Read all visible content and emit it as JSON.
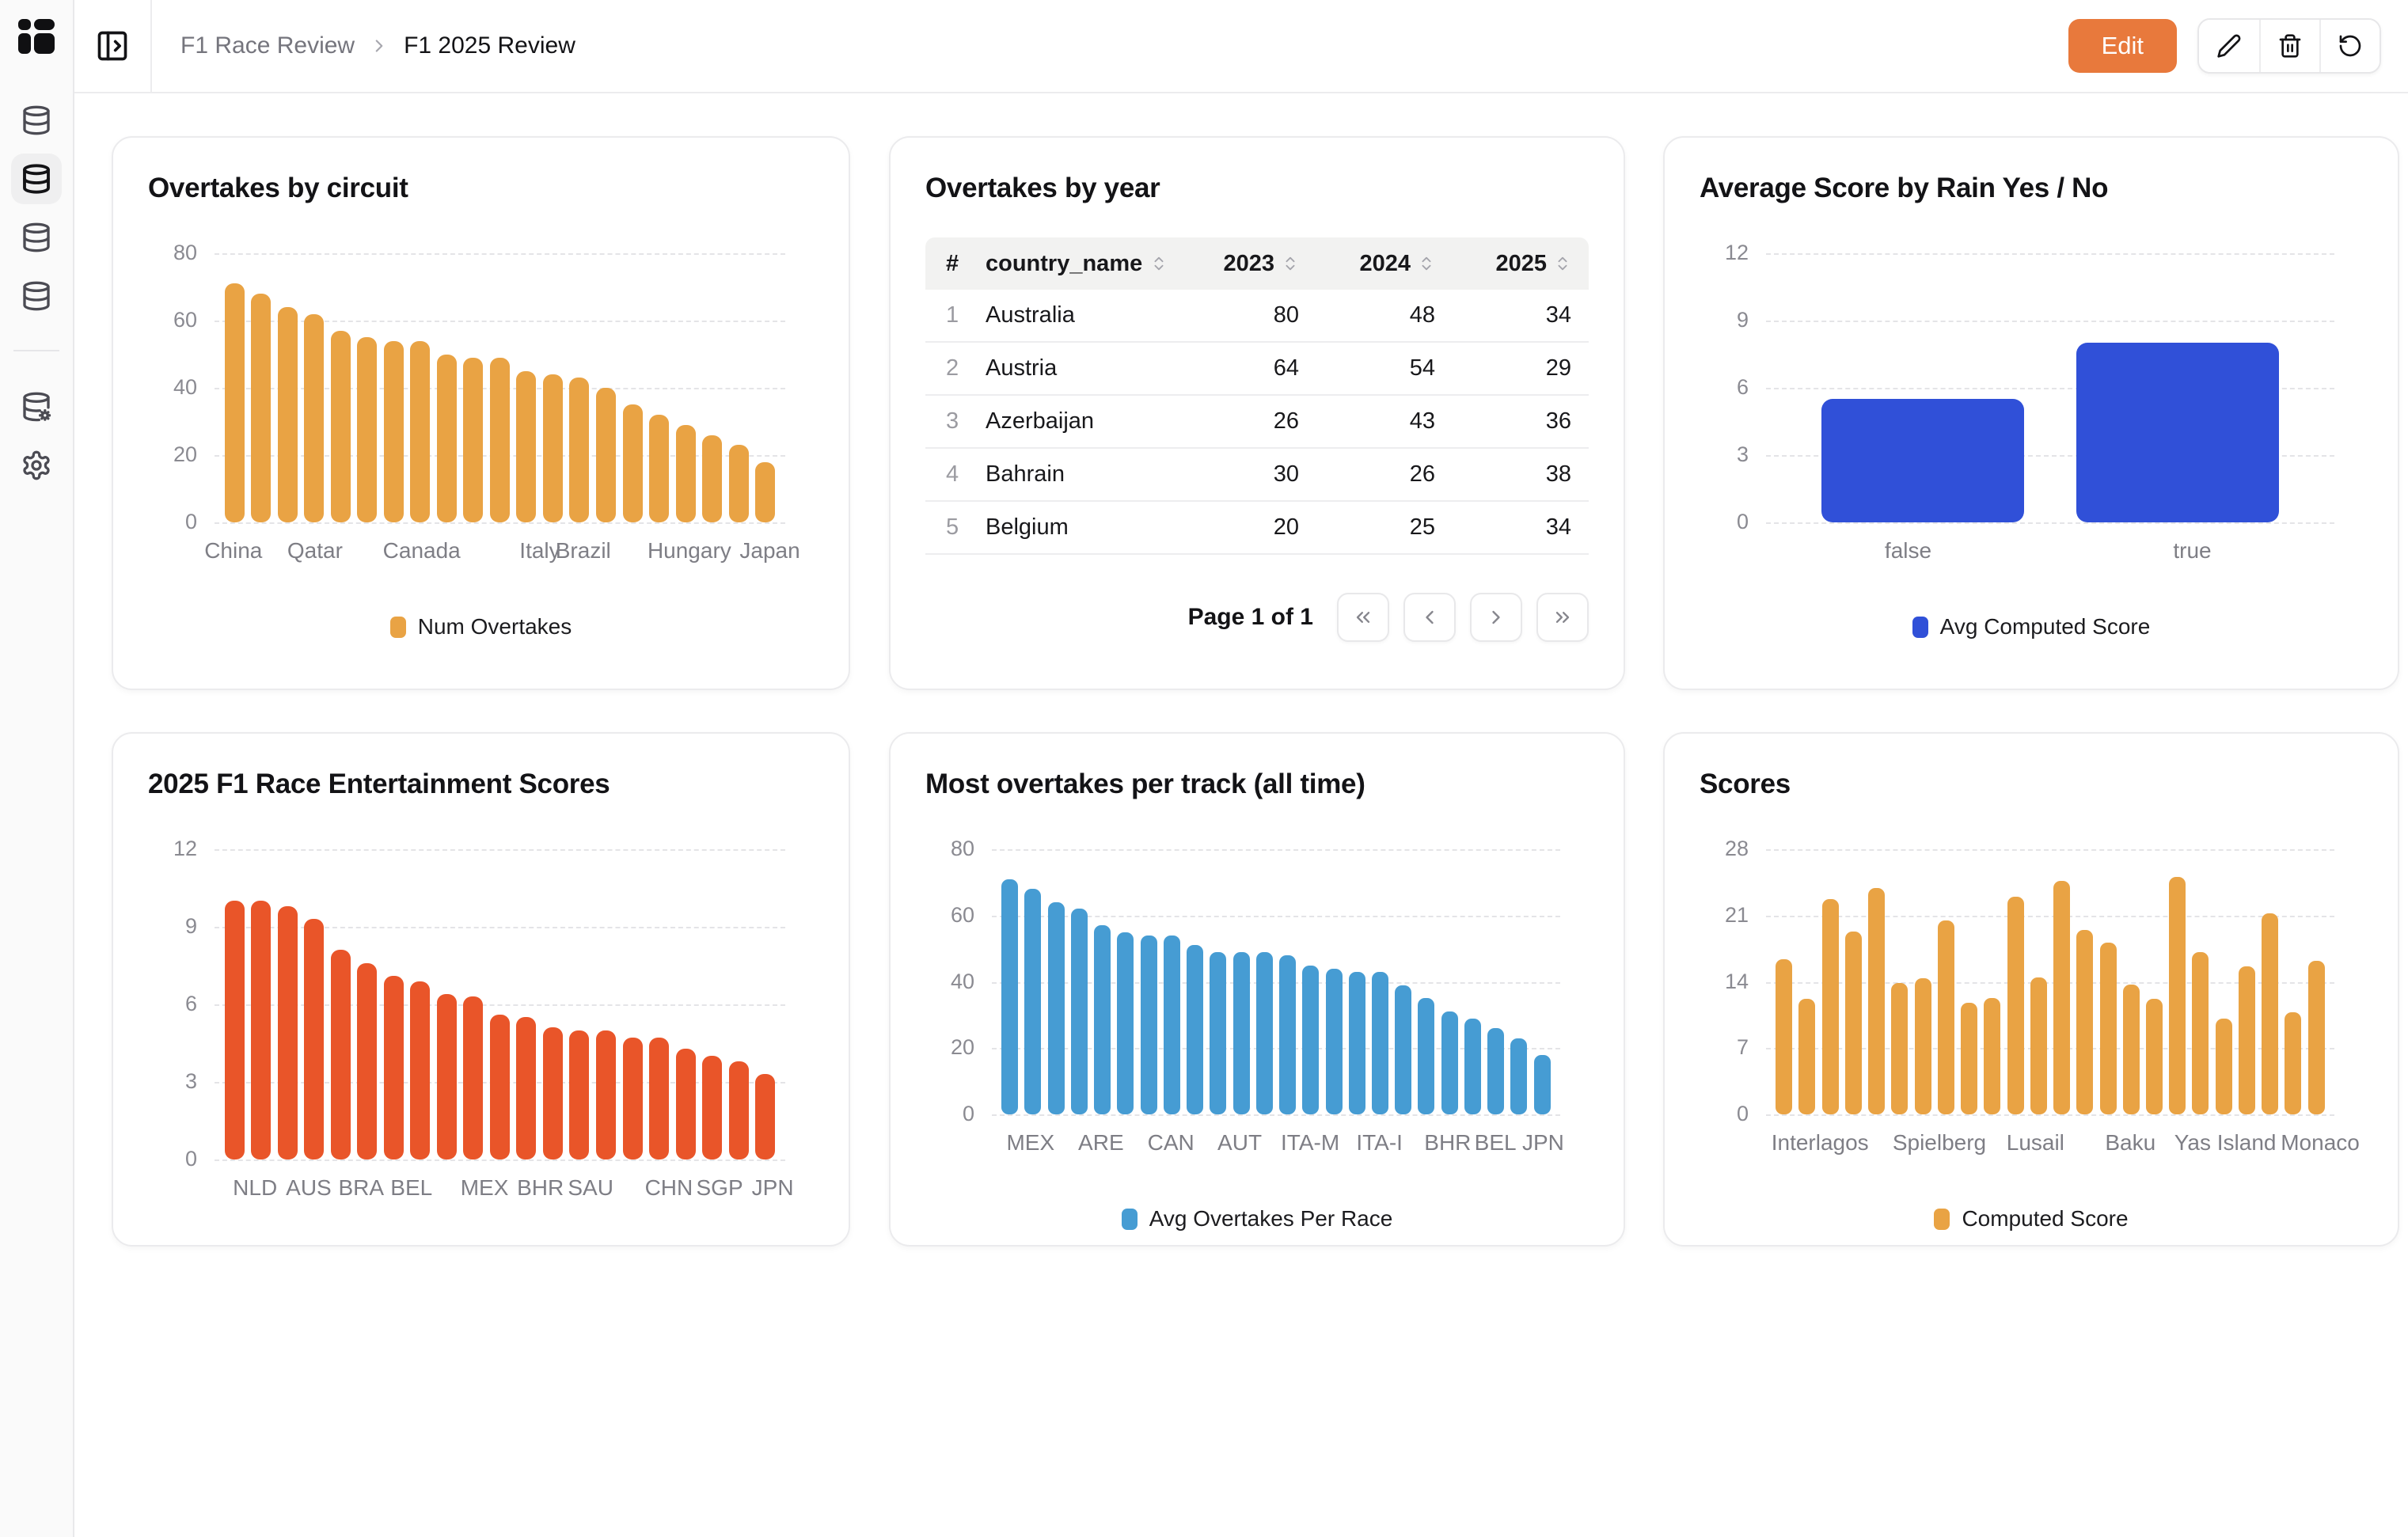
{
  "header": {
    "breadcrumb": {
      "root": "F1 Race Review",
      "current": "F1 2025 Review"
    },
    "edit_label": "Edit"
  },
  "sidebar": {
    "items": [
      {
        "name": "database-1",
        "active": false
      },
      {
        "name": "database-2",
        "active": true
      },
      {
        "name": "database-3",
        "active": false
      },
      {
        "name": "database-4",
        "active": false
      },
      {
        "name": "database-settings",
        "active": false
      },
      {
        "name": "settings",
        "active": false
      }
    ]
  },
  "pagination": {
    "label": "Page 1 of 1"
  },
  "colors": {
    "amber": "#E9A344",
    "red_orange": "#E95529",
    "sky_blue": "#469CD3",
    "royal_blue": "#3050D8",
    "edit_button": "#E8793C"
  },
  "chart_data": [
    {
      "type": "bar",
      "title": "Overtakes by circuit",
      "legend": "Num Overtakes",
      "color": "#E9A344",
      "ylim": [
        0,
        80
      ],
      "yticks": [
        80,
        60,
        40,
        20,
        0
      ],
      "grid": true,
      "legend_position": "bottom",
      "values": [
        71,
        68,
        64,
        62,
        57,
        55,
        54,
        54,
        50,
        49,
        49,
        45,
        44,
        43,
        40,
        35,
        32,
        29,
        26,
        23,
        18
      ],
      "xlabels": [
        {
          "label": "China",
          "pct": 3.3
        },
        {
          "label": "Qatar",
          "pct": 17.6
        },
        {
          "label": "Canada",
          "pct": 36.3
        },
        {
          "label": "Italy",
          "pct": 57.0
        },
        {
          "label": "Brazil",
          "pct": 64.6
        },
        {
          "label": "Hungary",
          "pct": 83.2
        },
        {
          "label": "Japan",
          "pct": 97.3
        }
      ]
    },
    {
      "type": "table",
      "title": "Overtakes by year",
      "columns": [
        "#",
        "country_name",
        "2023",
        "2024",
        "2025"
      ],
      "rows": [
        [
          "1",
          "Australia",
          "80",
          "48",
          "34"
        ],
        [
          "2",
          "Austria",
          "64",
          "54",
          "29"
        ],
        [
          "3",
          "Azerbaijan",
          "26",
          "43",
          "36"
        ],
        [
          "4",
          "Bahrain",
          "30",
          "26",
          "38"
        ],
        [
          "5",
          "Belgium",
          "20",
          "25",
          "34"
        ]
      ]
    },
    {
      "type": "bar",
      "title": "Average Score by Rain Yes / No",
      "legend": "Avg Computed Score",
      "color": "#3050D8",
      "ylim": [
        0,
        12
      ],
      "yticks": [
        12,
        9,
        6,
        3,
        0
      ],
      "grid": true,
      "legend_position": "bottom",
      "values": [
        5.5,
        8
      ],
      "xlabels": [
        {
          "label": "false",
          "pct": 25
        },
        {
          "label": "true",
          "pct": 75
        }
      ]
    },
    {
      "type": "bar",
      "title": "2025 F1 Race Entertainment Scores",
      "legend": "",
      "color": "#E95529",
      "ylim": [
        0,
        12
      ],
      "yticks": [
        12,
        9,
        6,
        3,
        0
      ],
      "grid": true,
      "legend_position": "none",
      "values": [
        10,
        10,
        9.8,
        9.3,
        8.1,
        7.6,
        7.1,
        6.9,
        6.4,
        6.3,
        5.6,
        5.5,
        5.1,
        5,
        5,
        4.7,
        4.7,
        4.3,
        4,
        3.8,
        3.3
      ],
      "xlabels": [
        {
          "label": "NLD",
          "pct": 7.1
        },
        {
          "label": "AUS",
          "pct": 16.5
        },
        {
          "label": "BRA",
          "pct": 25.7
        },
        {
          "label": "BEL",
          "pct": 34.5
        },
        {
          "label": "MEX",
          "pct": 47.3
        },
        {
          "label": "BHR",
          "pct": 57.1
        },
        {
          "label": "SAU",
          "pct": 65.9
        },
        {
          "label": "CHN",
          "pct": 79.6
        },
        {
          "label": "SGP",
          "pct": 88.5
        },
        {
          "label": "JPN",
          "pct": 97.8
        }
      ]
    },
    {
      "type": "bar",
      "title": "Most overtakes per track (all time)",
      "legend": "Avg Overtakes Per Race",
      "color": "#469CD3",
      "ylim": [
        0,
        80
      ],
      "yticks": [
        80,
        60,
        40,
        20,
        0
      ],
      "grid": true,
      "legend_position": "bottom",
      "values": [
        71,
        68,
        64,
        62,
        57,
        55,
        54,
        54,
        51,
        49,
        49,
        49,
        48,
        45,
        44,
        43,
        43,
        39,
        35,
        31,
        29,
        26,
        23,
        18
      ],
      "xlabels": [
        {
          "label": "MEX",
          "pct": 6.8
        },
        {
          "label": "ARE",
          "pct": 19.2
        },
        {
          "label": "CAN",
          "pct": 31.5
        },
        {
          "label": "AUT",
          "pct": 43.6
        },
        {
          "label": "ITA-M",
          "pct": 56.0
        },
        {
          "label": "ITA-I",
          "pct": 68.2
        },
        {
          "label": "BHR",
          "pct": 80.2
        },
        {
          "label": "BEL",
          "pct": 88.6
        },
        {
          "label": "JPN",
          "pct": 97.0
        }
      ]
    },
    {
      "type": "bar",
      "title": "Scores",
      "legend": "Computed Score",
      "color": "#E9A344",
      "ylim": [
        0,
        28
      ],
      "yticks": [
        28,
        21,
        14,
        7,
        0
      ],
      "grid": true,
      "legend_position": "bottom",
      "values": [
        16.4,
        12.2,
        22.7,
        19.3,
        23.9,
        13.9,
        14.4,
        20.5,
        11.8,
        12.3,
        23.0,
        14.5,
        24.7,
        19.5,
        18.1,
        13.7,
        12.2,
        25.1,
        17.1,
        10.1,
        15.6,
        21.2,
        10.8,
        16.2
      ],
      "xlabels": [
        {
          "label": "Interlagos",
          "pct": 9.5
        },
        {
          "label": "Spielberg",
          "pct": 30.5
        },
        {
          "label": "Lusail",
          "pct": 47.4
        },
        {
          "label": "Baku",
          "pct": 64.1
        },
        {
          "label": "Yas Island",
          "pct": 80.8
        },
        {
          "label": "Monaco",
          "pct": 97.5
        }
      ]
    }
  ]
}
